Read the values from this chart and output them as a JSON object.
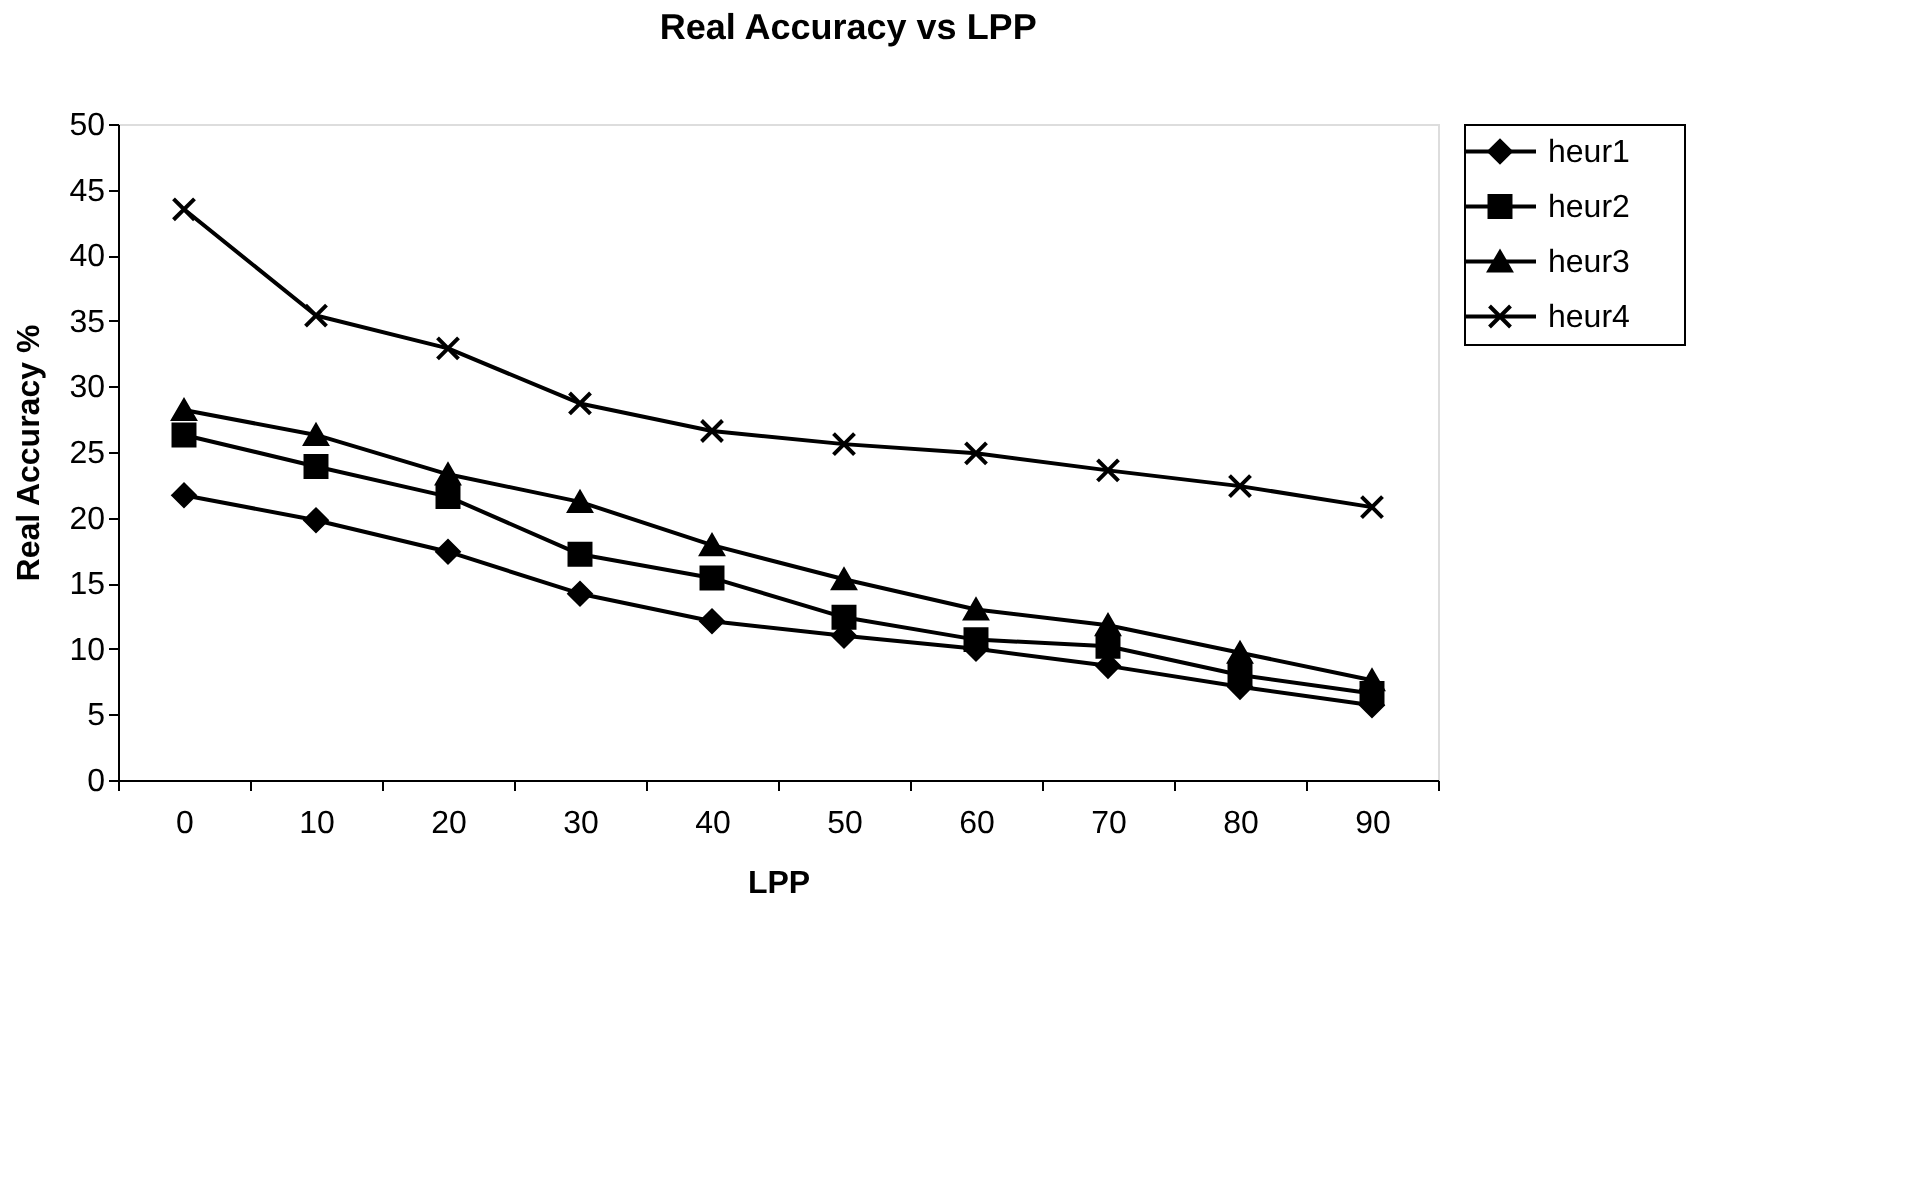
{
  "chart_data": {
    "type": "line",
    "title": "Real Accuracy vs LPP",
    "xlabel": "LPP",
    "ylabel": "Real Accuracy %",
    "categories": [
      "0",
      "10",
      "20",
      "30",
      "40",
      "50",
      "60",
      "70",
      "80",
      "90"
    ],
    "series": [
      {
        "name": "heur1",
        "color": "#000000",
        "marker": "diamond",
        "values": [
          21.7,
          19.8,
          17.4,
          14.2,
          12.1,
          11.0,
          10.0,
          8.7,
          7.1,
          5.7
        ]
      },
      {
        "name": "heur2",
        "color": "#000000",
        "marker": "square",
        "values": [
          26.3,
          23.9,
          21.6,
          17.2,
          15.4,
          12.4,
          10.7,
          10.2,
          8.0,
          6.6
        ]
      },
      {
        "name": "heur3",
        "color": "#000000",
        "marker": "triangle",
        "values": [
          28.2,
          26.3,
          23.3,
          21.2,
          17.9,
          15.3,
          13.0,
          11.8,
          9.7,
          7.6
        ]
      },
      {
        "name": "heur4",
        "color": "#000000",
        "marker": "cross",
        "values": [
          43.5,
          35.4,
          32.9,
          28.7,
          26.6,
          25.6,
          24.9,
          23.6,
          22.4,
          20.8
        ]
      }
    ],
    "ylim": [
      0,
      50
    ],
    "yticks": [
      0,
      5,
      10,
      15,
      20,
      25,
      30,
      35,
      40,
      45,
      50
    ],
    "grid": false,
    "legend": "right",
    "line_style": "solid"
  }
}
